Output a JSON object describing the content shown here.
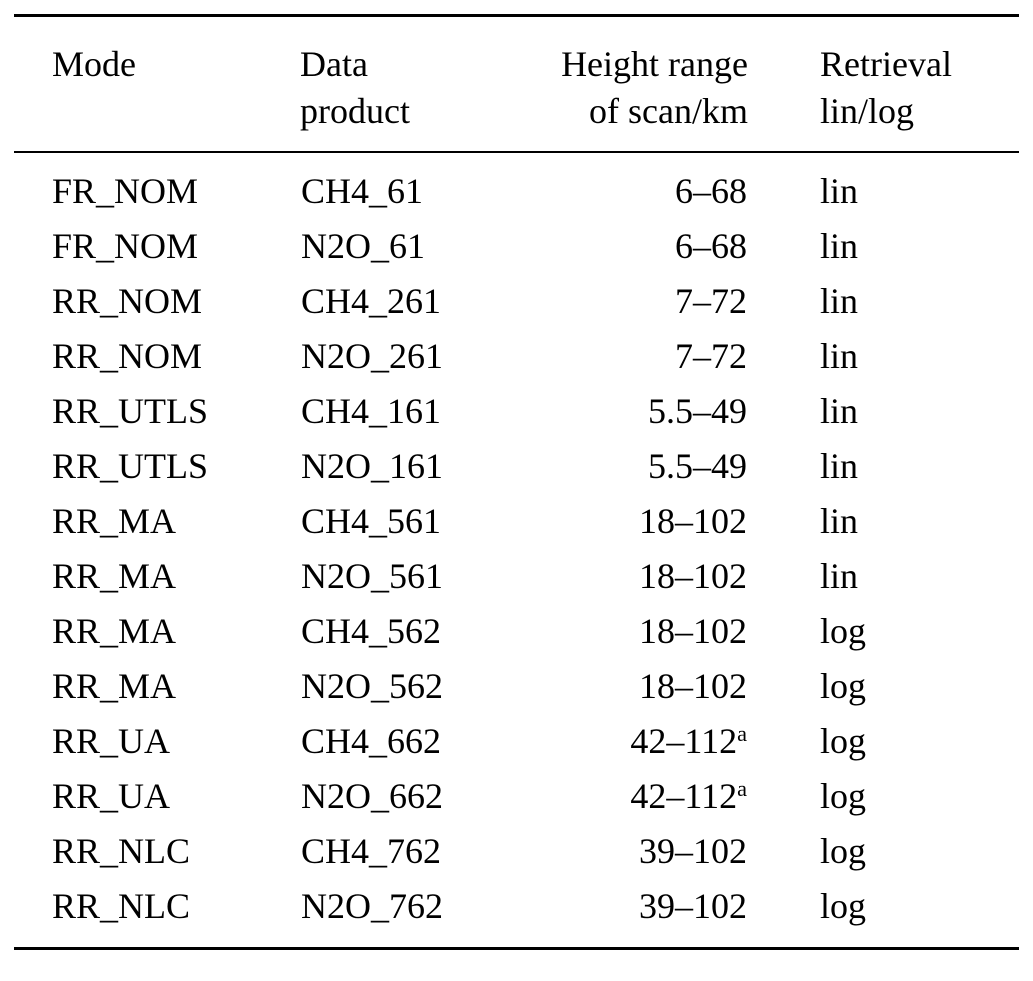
{
  "table": {
    "headers": [
      {
        "lines": [
          "Mode"
        ]
      },
      {
        "lines": [
          "Data",
          "product"
        ]
      },
      {
        "lines": [
          "Height range",
          "of scan/km"
        ]
      },
      {
        "lines": [
          "Retrieval",
          "lin/log"
        ]
      }
    ],
    "rows": [
      {
        "mode": "FR_NOM",
        "product": "CH4_61",
        "height": "6–68",
        "retrieval": "lin"
      },
      {
        "mode": "FR_NOM",
        "product": "N2O_61",
        "height": "6–68",
        "retrieval": "lin"
      },
      {
        "mode": "RR_NOM",
        "product": "CH4_261",
        "height": "7–72",
        "retrieval": "lin"
      },
      {
        "mode": "RR_NOM",
        "product": "N2O_261",
        "height": "7–72",
        "retrieval": "lin"
      },
      {
        "mode": "RR_UTLS",
        "product": "CH4_161",
        "height": "5.5–49",
        "retrieval": "lin"
      },
      {
        "mode": "RR_UTLS",
        "product": "N2O_161",
        "height": "5.5–49",
        "retrieval": "lin"
      },
      {
        "mode": "RR_MA",
        "product": "CH4_561",
        "height": "18–102",
        "retrieval": "lin"
      },
      {
        "mode": "RR_MA",
        "product": "N2O_561",
        "height": "18–102",
        "retrieval": "lin"
      },
      {
        "mode": "RR_MA",
        "product": "CH4_562",
        "height": "18–102",
        "retrieval": "log"
      },
      {
        "mode": "RR_MA",
        "product": "N2O_562",
        "height": "18–102",
        "retrieval": "log"
      },
      {
        "mode": "RR_UA",
        "product": "CH4_662",
        "height": "42–112",
        "height_sup": "a",
        "retrieval": "log"
      },
      {
        "mode": "RR_UA",
        "product": "N2O_662",
        "height": "42–112",
        "height_sup": "a",
        "retrieval": "log"
      },
      {
        "mode": "RR_NLC",
        "product": "CH4_762",
        "height": "39–102",
        "retrieval": "log"
      },
      {
        "mode": "RR_NLC",
        "product": "N2O_762",
        "height": "39–102",
        "retrieval": "log"
      }
    ]
  }
}
